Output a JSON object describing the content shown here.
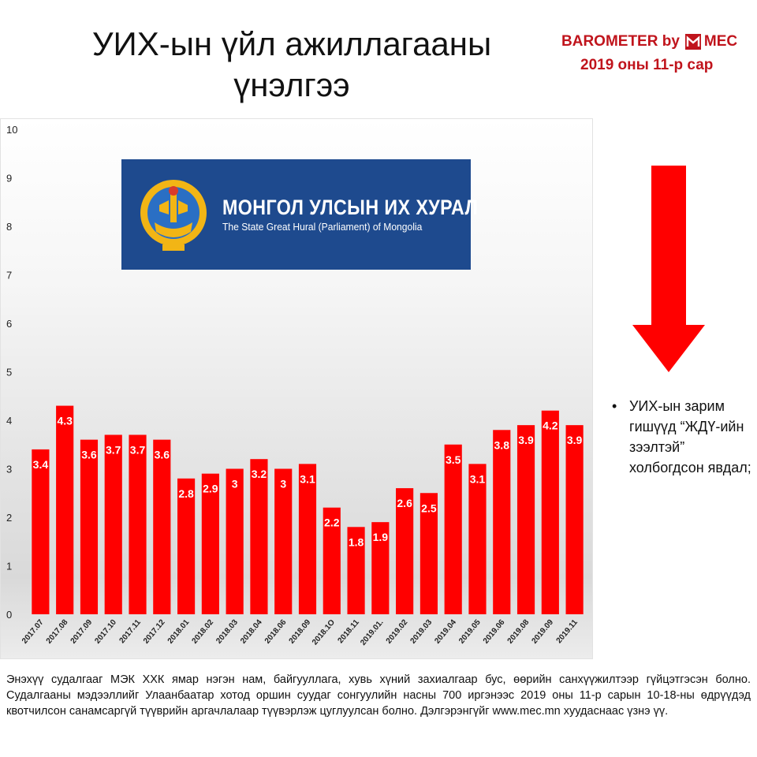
{
  "header": {
    "title_line1": "УИХ-ын үйл ажиллагааны",
    "title_line2": "үнэлгээ"
  },
  "brand": {
    "name": "BAROMETER by",
    "company": "MEC",
    "period": "2019 оны 11-р сар",
    "color": "#c0141c"
  },
  "logo": {
    "name_mn": "МОНГОЛ УЛСЫН ИХ ХУРАЛ",
    "name_en": "The State Great Hural (Parliament) of Mongolia",
    "background": "#1e4a8e"
  },
  "note": {
    "bullet": "•",
    "text": "УИХ-ын зарим гишүүд “ЖДҮ-ийн зээлтэй” холбогдсон явдал;",
    "arrow_icon": "down-arrow-icon",
    "arrow_color": "#ff0000"
  },
  "footer": {
    "text": "Энэхүү судалгааг МЭК ХХК ямар нэгэн нам, байгууллага, хувь хүний захиалгаар бус, өөрийн санхүүжилтээр гүйцэтгэсэн болно. Судалгааны мэдээллийг Улаанбаатар хотод оршин суудаг сонгуулийн насны 700 иргэнээс 2019 оны 11-р сарын 10-18-ны өдрүүдэд квотчилсон санамсаргүй түүврийн аргачлалаар түүвэрлэж цуглуулсан болно. Дэлгэрэнгүйг www.mec.mn хуудаснаас үзнэ үү."
  },
  "chart_data": {
    "type": "bar",
    "title": "",
    "xlabel": "",
    "ylabel": "",
    "ylim": [
      0,
      10
    ],
    "yticks": [
      0,
      1,
      2,
      3,
      4,
      5,
      6,
      7,
      8,
      9,
      10
    ],
    "grid": false,
    "bar_color": "#ff0000",
    "label_color": "#ffffff",
    "categories": [
      "2017.07",
      "2017.08",
      "2017.09",
      "2017.10",
      "2017.11",
      "2017.12",
      "2018.01",
      "2018.02",
      "2018.03",
      "2018.04",
      "2018.06",
      "2018.09",
      "2018.1O",
      "2018.11",
      "2019.01.",
      "2019.02",
      "2019.03",
      "2019.04",
      "2019.05",
      "2019.06",
      "2019.08",
      "2019.09",
      "2019.11"
    ],
    "values": [
      3.4,
      4.3,
      3.6,
      3.7,
      3.7,
      3.6,
      2.8,
      2.9,
      3,
      3.2,
      3,
      3.1,
      2.2,
      1.8,
      1.9,
      2.6,
      2.5,
      3.5,
      3.1,
      3.8,
      3.9,
      4.2,
      3.9
    ]
  }
}
